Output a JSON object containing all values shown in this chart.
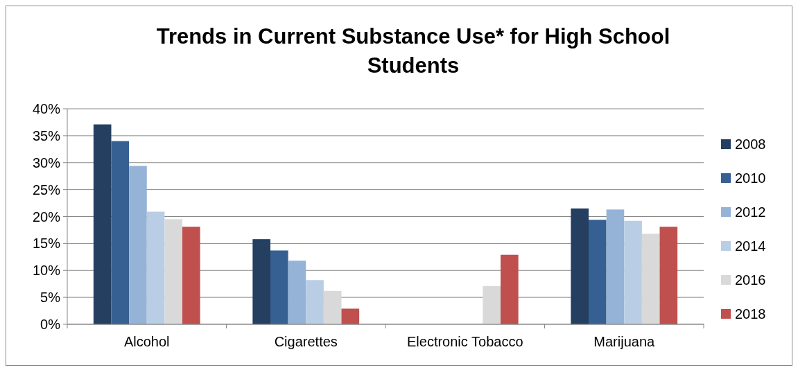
{
  "chart_data": {
    "type": "bar",
    "title": "Trends in Current Substance Use* for High School Students",
    "categories": [
      "Alcohol",
      "Cigarettes",
      "Electronic Tobacco",
      "Marijuana"
    ],
    "series": [
      {
        "name": "2008",
        "color": "#243f60",
        "values": [
          37.1,
          15.8,
          null,
          21.5
        ]
      },
      {
        "name": "2010",
        "color": "#376092",
        "values": [
          34.0,
          13.7,
          null,
          19.4
        ]
      },
      {
        "name": "2012",
        "color": "#95b3d7",
        "values": [
          29.4,
          11.8,
          null,
          21.3
        ]
      },
      {
        "name": "2014",
        "color": "#b9cde5",
        "values": [
          20.9,
          8.2,
          null,
          19.2
        ]
      },
      {
        "name": "2016",
        "color": "#d9d9d9",
        "values": [
          19.5,
          6.2,
          7.1,
          16.8
        ]
      },
      {
        "name": "2018",
        "color": "#c0504d",
        "values": [
          18.1,
          2.9,
          12.9,
          18.1
        ]
      }
    ],
    "ylim": [
      0,
      40
    ],
    "yticks": [
      {
        "value": 0,
        "label": "0%"
      },
      {
        "value": 5,
        "label": "5%"
      },
      {
        "value": 10,
        "label": "10%"
      },
      {
        "value": 15,
        "label": "15%"
      },
      {
        "value": 20,
        "label": "20%"
      },
      {
        "value": 25,
        "label": "25%"
      },
      {
        "value": 30,
        "label": "30%"
      },
      {
        "value": 35,
        "label": "35%"
      },
      {
        "value": 40,
        "label": "40%"
      }
    ],
    "grid": "y",
    "legend": "right"
  }
}
